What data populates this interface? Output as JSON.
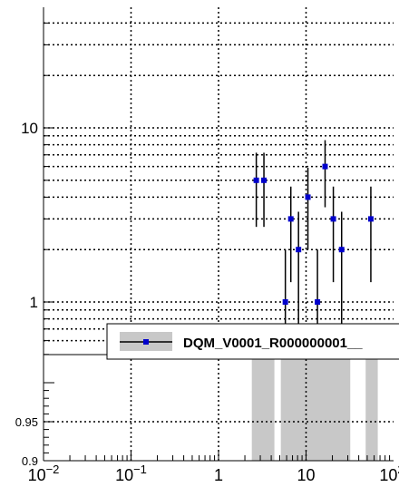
{
  "chart_data": [
    {
      "type": "scatter",
      "title": "",
      "xlabel": "",
      "ylabel": "",
      "xscale": "log",
      "yscale": "log",
      "xlim": [
        0.01,
        100
      ],
      "ylim": [
        0.5,
        55
      ],
      "grid": true,
      "y_ticks": [
        {
          "value": 1,
          "label": "1"
        },
        {
          "value": 10,
          "label": "10"
        }
      ],
      "series": [
        {
          "name": "DQM_V0001_R000000001__",
          "color": "#0000cc",
          "points": [
            {
              "x": 2.7,
              "y": 5,
              "ylo": 2.7,
              "yhi": 7.2
            },
            {
              "x": 3.3,
              "y": 5,
              "ylo": 2.7,
              "yhi": 7.2
            },
            {
              "x": 5.8,
              "y": 1,
              "ylo": 0.5,
              "yhi": 2.0
            },
            {
              "x": 6.7,
              "y": 3,
              "ylo": 1.3,
              "yhi": 4.6
            },
            {
              "x": 8.2,
              "y": 2,
              "ylo": 0.5,
              "yhi": 3.3
            },
            {
              "x": 10.5,
              "y": 4,
              "ylo": 2.0,
              "yhi": 5.9
            },
            {
              "x": 13.5,
              "y": 1,
              "ylo": 0.5,
              "yhi": 2.0
            },
            {
              "x": 16.5,
              "y": 6,
              "ylo": 3.5,
              "yhi": 8.5
            },
            {
              "x": 20.5,
              "y": 3,
              "ylo": 1.3,
              "yhi": 4.6
            },
            {
              "x": 25.5,
              "y": 2,
              "ylo": 0.5,
              "yhi": 3.3
            },
            {
              "x": 55,
              "y": 3,
              "ylo": 1.3,
              "yhi": 4.6
            }
          ]
        }
      ],
      "legend": {
        "position": "bottom-right",
        "entries": [
          "DQM_V0001_R000000001__"
        ]
      }
    },
    {
      "type": "bar",
      "title": "",
      "xlabel": "",
      "ylabel": "",
      "xscale": "log",
      "xlim": [
        0.01,
        100
      ],
      "ylim": [
        0.9,
        1.0
      ],
      "grid": true,
      "x_ticks": [
        {
          "value": 0.01,
          "label": "10",
          "sup": "−2"
        },
        {
          "value": 0.1,
          "label": "10",
          "sup": "−1"
        },
        {
          "value": 1,
          "label": "1",
          "sup": ""
        },
        {
          "value": 10,
          "label": "10",
          "sup": ""
        },
        {
          "value": 100,
          "label": "10",
          "sup": "2"
        }
      ],
      "y_ticks": [
        {
          "value": 0.9,
          "label": "0.9"
        },
        {
          "value": 0.95,
          "label": "0.95"
        }
      ],
      "bands": [
        {
          "x0": 2.4,
          "x1": 4.35
        },
        {
          "x0": 5.15,
          "x1": 32.0
        },
        {
          "x0": 48.0,
          "x1": 66.0
        }
      ],
      "band_color": "#c8c8c8"
    }
  ]
}
